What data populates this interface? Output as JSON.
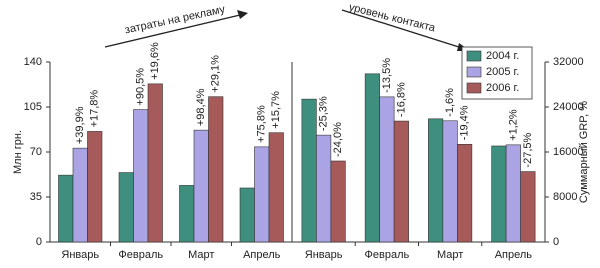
{
  "chart_data": [
    {
      "type": "bar",
      "y_label": "Млн грн.",
      "annotation": "затраты на рекламу",
      "categories": [
        "Январь",
        "Февраль",
        "Март",
        "Апрель"
      ],
      "series": [
        {
          "color": "#3f8f7f",
          "values": [
            52,
            54,
            44,
            42
          ]
        },
        {
          "color": "#aaa4e4",
          "values": [
            73,
            103,
            87,
            74
          ],
          "value_labels": [
            "+39,9%",
            "+90,5%",
            "+98,4%",
            "+75,8%"
          ]
        },
        {
          "color": "#a65a5a",
          "values": [
            86,
            123,
            113,
            85
          ],
          "value_labels": [
            "+17,8%",
            "+19,6%",
            "+29,1%",
            "+15,7%"
          ]
        }
      ],
      "ylim": [
        0,
        140
      ],
      "yticks": [
        0,
        35,
        70,
        105,
        140
      ]
    },
    {
      "type": "bar",
      "y_label": "Суммарный GRP, %",
      "annotation": "уровень контакта",
      "categories": [
        "Январь",
        "Февраль",
        "Март",
        "Апрель"
      ],
      "series": [
        {
          "name": "2004 г.",
          "color": "#3f8f7f",
          "values": [
            25400,
            29900,
            21900,
            17070
          ]
        },
        {
          "name": "2005 г.",
          "color": "#aaa4e4",
          "values": [
            19000,
            25800,
            21550,
            17270
          ],
          "value_labels": [
            "-25,3%",
            "-13,5%",
            "-1,6%",
            "+1,2%"
          ]
        },
        {
          "name": "2006 г.",
          "color": "#a65a5a",
          "values": [
            14400,
            21500,
            17370,
            12520
          ],
          "value_labels": [
            "-24,0%",
            "-16,8%",
            "-19,4%",
            "-27,5%"
          ]
        }
      ],
      "ylim": [
        0,
        32000
      ],
      "yticks": [
        0,
        8000,
        16000,
        24000,
        32000
      ],
      "legend": "upper right"
    }
  ]
}
